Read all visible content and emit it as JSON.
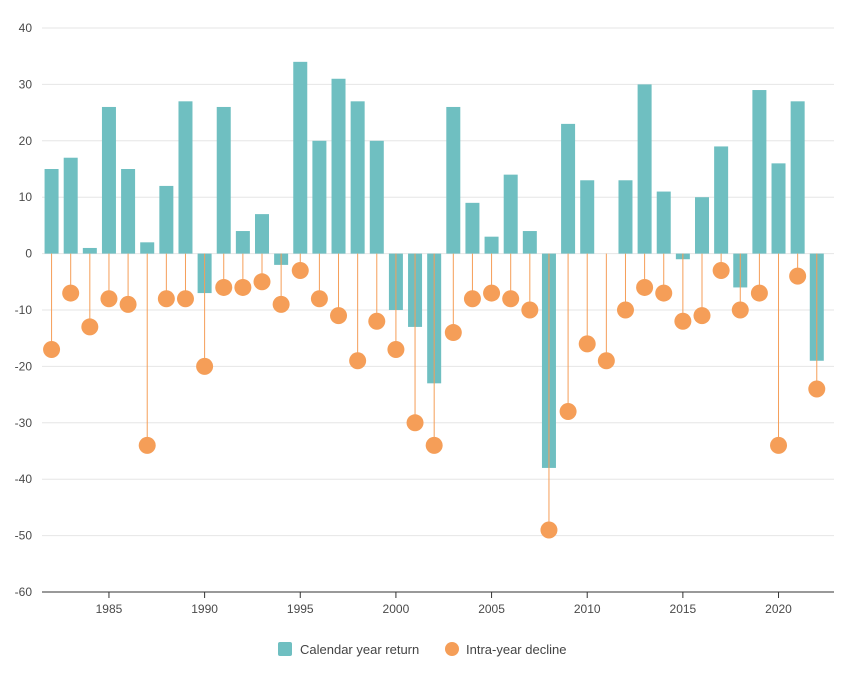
{
  "colors": {
    "bar": "#6fbfc1",
    "decline": "#f59e58",
    "grid": "#e6e6e6",
    "axis": "#333333",
    "text": "#4a4a4a"
  },
  "legend": {
    "bar_label": "Calendar year return",
    "decline_label": "Intra-year decline",
    "placement": "bottom-center"
  },
  "chart_data": {
    "type": "bar",
    "title": "",
    "xlabel": "",
    "ylabel": "",
    "ylim": [
      -60,
      40
    ],
    "yticks": [
      40,
      30,
      20,
      10,
      0,
      -10,
      -20,
      -30,
      -40,
      -50,
      -60
    ],
    "xlim": [
      1981.5,
      2022.9
    ],
    "xticks": [
      1985,
      1990,
      1995,
      2000,
      2005,
      2010,
      2015,
      2020
    ],
    "grid": "horizontal",
    "x": [
      1982,
      1983,
      1984,
      1985,
      1986,
      1987,
      1988,
      1989,
      1990,
      1991,
      1992,
      1993,
      1994,
      1995,
      1996,
      1997,
      1998,
      1999,
      2000,
      2001,
      2002,
      2003,
      2004,
      2005,
      2006,
      2007,
      2008,
      2009,
      2010,
      2011,
      2012,
      2013,
      2014,
      2015,
      2016,
      2017,
      2018,
      2019,
      2020,
      2021,
      2022
    ],
    "series": [
      {
        "name": "Calendar year return",
        "kind": "bar",
        "values": [
          15,
          17,
          1,
          26,
          15,
          2,
          12,
          27,
          -7,
          26,
          4,
          7,
          -2,
          34,
          20,
          31,
          27,
          20,
          -10,
          -13,
          -23,
          26,
          9,
          3,
          14,
          4,
          -38,
          23,
          13,
          0,
          13,
          30,
          11,
          -1,
          10,
          19,
          -6,
          29,
          16,
          27,
          -19
        ]
      },
      {
        "name": "Intra-year decline",
        "kind": "lollipop",
        "values": [
          -17,
          -7,
          -13,
          -8,
          -9,
          -34,
          -8,
          -8,
          -20,
          -6,
          -6,
          -5,
          -9,
          -3,
          -8,
          -11,
          -19,
          -12,
          -17,
          -30,
          -34,
          -14,
          -8,
          -7,
          -8,
          -10,
          -49,
          -28,
          -16,
          -19,
          -10,
          -6,
          -7,
          -12,
          -11,
          -3,
          -10,
          -7,
          -34,
          -4,
          -24
        ]
      }
    ]
  }
}
